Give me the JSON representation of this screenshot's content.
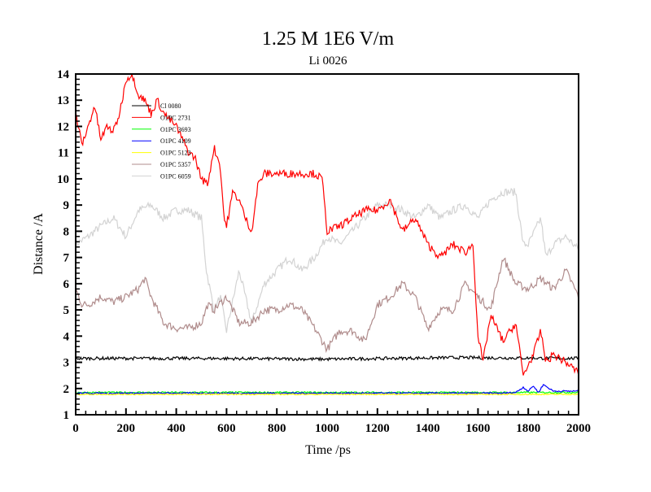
{
  "chart_data": {
    "type": "line",
    "title": "1.25 M 1E6 V/m",
    "subtitle": "Li 0026",
    "xlabel": "Time /ps",
    "ylabel": "Distance /A",
    "xlim": [
      0,
      2000
    ],
    "ylim": [
      1,
      14
    ],
    "xticks": [
      0,
      200,
      400,
      600,
      800,
      1000,
      1200,
      1400,
      1600,
      1800,
      2000
    ],
    "yticks": [
      1,
      2,
      3,
      4,
      5,
      6,
      7,
      8,
      9,
      10,
      11,
      12,
      13,
      14
    ],
    "grid": false,
    "legend_position": "top-left",
    "series": [
      {
        "name": "Cl 0080",
        "color": "#000000",
        "noise": 0.06,
        "x": [
          0,
          500,
          1000,
          1500,
          2000
        ],
        "y": [
          3.15,
          3.15,
          3.12,
          3.18,
          3.15
        ]
      },
      {
        "name": "O1PC 2731",
        "color": "#ff0000",
        "noise": 0.15,
        "x": [
          0,
          25,
          50,
          75,
          100,
          125,
          150,
          175,
          200,
          225,
          250,
          275,
          300,
          325,
          350,
          400,
          425,
          450,
          475,
          500,
          525,
          550,
          575,
          590,
          600,
          625,
          650,
          675,
          700,
          725,
          750,
          800,
          850,
          900,
          950,
          980,
          1000,
          1050,
          1100,
          1150,
          1200,
          1250,
          1300,
          1350,
          1400,
          1450,
          1500,
          1550,
          1580,
          1600,
          1620,
          1650,
          1700,
          1750,
          1780,
          1820,
          1850,
          1870,
          1900,
          1950,
          2000
        ],
        "y": [
          12.5,
          11.3,
          12,
          12.8,
          11.5,
          12,
          11.8,
          12.5,
          13.8,
          14,
          13.2,
          13,
          12.5,
          13,
          12.5,
          12,
          11.5,
          11,
          10.8,
          10,
          9.8,
          11.2,
          10.5,
          8.5,
          8.2,
          9.5,
          9.2,
          8.5,
          8,
          9.8,
          10.2,
          10.2,
          10.2,
          10.2,
          10.2,
          10,
          8,
          8.2,
          8.5,
          8.8,
          8.8,
          9.2,
          8,
          8.5,
          7.5,
          7,
          7.5,
          7.2,
          7.5,
          4,
          3,
          4.8,
          3.8,
          4.5,
          2.5,
          3.3,
          4.2,
          3,
          3.3,
          3,
          2.6
        ]
      },
      {
        "name": "O1PC 3693",
        "color": "#00ff00",
        "noise": 0.03,
        "x": [
          0,
          2000
        ],
        "y": [
          1.85,
          1.85
        ]
      },
      {
        "name": "O1PC 4109",
        "color": "#0000ff",
        "noise": 0.03,
        "x": [
          0,
          1700,
          1750,
          1780,
          1800,
          1820,
          1840,
          1860,
          1900,
          2000
        ],
        "y": [
          1.82,
          1.82,
          1.85,
          2.05,
          1.9,
          2.1,
          1.85,
          2.15,
          1.9,
          1.9
        ]
      },
      {
        "name": "O1PC 5123",
        "color": "#ffff00",
        "noise": 0.02,
        "x": [
          0,
          2000
        ],
        "y": [
          1.78,
          1.78
        ]
      },
      {
        "name": "O1PC 5357",
        "color": "#b08c8c",
        "noise": 0.15,
        "x": [
          0,
          25,
          50,
          100,
          150,
          200,
          250,
          275,
          300,
          350,
          400,
          450,
          500,
          525,
          550,
          600,
          650,
          700,
          750,
          800,
          850,
          900,
          950,
          1000,
          1050,
          1100,
          1150,
          1200,
          1250,
          1300,
          1350,
          1400,
          1450,
          1500,
          1550,
          1600,
          1650,
          1700,
          1750,
          1800,
          1850,
          1900,
          1950,
          2000
        ],
        "y": [
          5.8,
          5.2,
          5.2,
          5.5,
          5.3,
          5.5,
          5.8,
          6.2,
          5.5,
          4.5,
          4.3,
          4.3,
          4.5,
          5.2,
          5,
          5.5,
          4.5,
          4.5,
          5,
          5,
          5.2,
          5,
          4.3,
          3.5,
          4.2,
          4.2,
          3.8,
          5.2,
          5.5,
          6,
          5.5,
          4.3,
          5,
          5,
          6,
          5.5,
          5,
          7,
          6,
          5.8,
          6.2,
          5.8,
          6.5,
          5.5
        ]
      },
      {
        "name": "O1PC 6059",
        "color": "#d3d3d3",
        "noise": 0.15,
        "x": [
          0,
          50,
          100,
          150,
          200,
          250,
          300,
          350,
          400,
          450,
          500,
          520,
          550,
          575,
          600,
          650,
          700,
          750,
          800,
          850,
          900,
          950,
          1000,
          1050,
          1100,
          1150,
          1200,
          1250,
          1300,
          1350,
          1400,
          1450,
          1500,
          1550,
          1600,
          1650,
          1700,
          1750,
          1780,
          1800,
          1850,
          1870,
          1900,
          1950,
          2000
        ],
        "y": [
          7.5,
          7.8,
          8.2,
          8.5,
          7.8,
          8.8,
          9,
          8.5,
          8.8,
          8.8,
          8.5,
          6.5,
          5,
          5.5,
          4.2,
          6.5,
          4.5,
          6,
          6.5,
          7,
          6.5,
          7,
          7.8,
          7.5,
          8,
          8.5,
          9,
          9,
          8.8,
          8.5,
          9,
          8.5,
          8.8,
          9,
          8.5,
          9.2,
          9.5,
          9.5,
          7.5,
          7.5,
          8.5,
          7,
          7.5,
          7.8,
          7.3
        ]
      }
    ]
  }
}
